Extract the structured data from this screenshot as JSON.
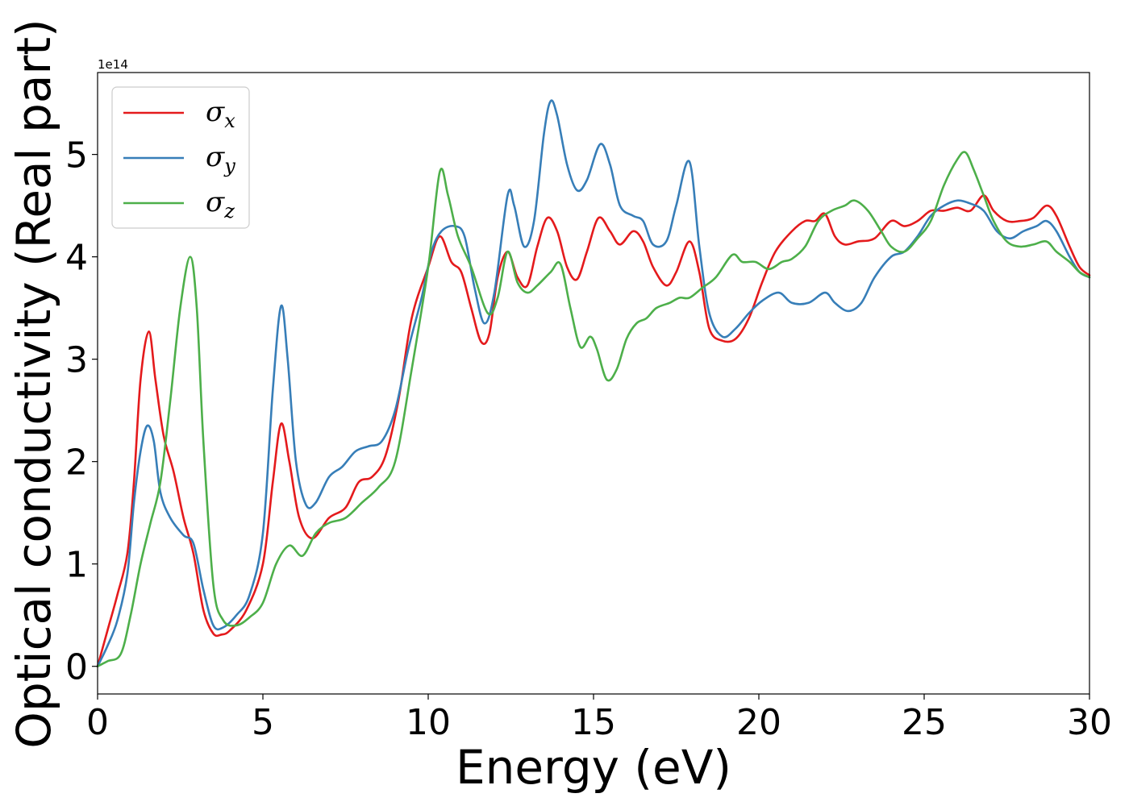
{
  "chart_data": {
    "type": "line",
    "xlabel": "Energy (eV)",
    "ylabel": "Optical conductivity (Real part)",
    "offset_text": "1e14",
    "xlim": [
      0,
      30
    ],
    "ylim": [
      -0.27,
      5.8
    ],
    "x_ticks": [
      0,
      5,
      10,
      15,
      20,
      25,
      30
    ],
    "x_tick_labels": [
      "0",
      "5",
      "10",
      "15",
      "20",
      "25",
      "30"
    ],
    "y_ticks": [
      0,
      1,
      2,
      3,
      4,
      5
    ],
    "y_tick_labels": [
      "0",
      "1",
      "2",
      "3",
      "4",
      "5"
    ],
    "grid": false,
    "legend_position": "upper-left",
    "series": [
      {
        "name": "σx",
        "symbol": "σ",
        "subscript": "x",
        "color": "#e41a1c",
        "points": [
          [
            0,
            0
          ],
          [
            0.3,
            0.35
          ],
          [
            0.6,
            0.7
          ],
          [
            0.9,
            1.1
          ],
          [
            1.1,
            1.8
          ],
          [
            1.3,
            2.8
          ],
          [
            1.55,
            3.27
          ],
          [
            1.75,
            2.8
          ],
          [
            2.0,
            2.25
          ],
          [
            2.3,
            1.9
          ],
          [
            2.6,
            1.45
          ],
          [
            2.9,
            1.1
          ],
          [
            3.2,
            0.55
          ],
          [
            3.5,
            0.32
          ],
          [
            3.75,
            0.31
          ],
          [
            4.0,
            0.35
          ],
          [
            4.5,
            0.55
          ],
          [
            5.0,
            1.0
          ],
          [
            5.3,
            1.8
          ],
          [
            5.55,
            2.37
          ],
          [
            5.8,
            2.0
          ],
          [
            6.1,
            1.45
          ],
          [
            6.5,
            1.25
          ],
          [
            7.0,
            1.45
          ],
          [
            7.5,
            1.55
          ],
          [
            7.9,
            1.8
          ],
          [
            8.3,
            1.85
          ],
          [
            8.7,
            2.05
          ],
          [
            9.1,
            2.6
          ],
          [
            9.5,
            3.4
          ],
          [
            10.0,
            3.9
          ],
          [
            10.35,
            4.2
          ],
          [
            10.7,
            3.95
          ],
          [
            11.0,
            3.85
          ],
          [
            11.3,
            3.5
          ],
          [
            11.6,
            3.17
          ],
          [
            11.85,
            3.25
          ],
          [
            12.1,
            3.8
          ],
          [
            12.4,
            4.05
          ],
          [
            12.7,
            3.8
          ],
          [
            13.0,
            3.72
          ],
          [
            13.3,
            4.1
          ],
          [
            13.6,
            4.38
          ],
          [
            13.9,
            4.25
          ],
          [
            14.2,
            3.9
          ],
          [
            14.5,
            3.78
          ],
          [
            14.8,
            4.05
          ],
          [
            15.15,
            4.38
          ],
          [
            15.5,
            4.25
          ],
          [
            15.8,
            4.12
          ],
          [
            16.2,
            4.25
          ],
          [
            16.5,
            4.15
          ],
          [
            16.8,
            3.9
          ],
          [
            17.2,
            3.72
          ],
          [
            17.5,
            3.85
          ],
          [
            17.9,
            4.15
          ],
          [
            18.2,
            3.85
          ],
          [
            18.5,
            3.3
          ],
          [
            18.9,
            3.18
          ],
          [
            19.3,
            3.2
          ],
          [
            19.7,
            3.4
          ],
          [
            20.1,
            3.75
          ],
          [
            20.5,
            4.05
          ],
          [
            21.0,
            4.25
          ],
          [
            21.4,
            4.35
          ],
          [
            21.7,
            4.35
          ],
          [
            22.0,
            4.42
          ],
          [
            22.3,
            4.2
          ],
          [
            22.6,
            4.12
          ],
          [
            23.0,
            4.15
          ],
          [
            23.5,
            4.18
          ],
          [
            24.0,
            4.35
          ],
          [
            24.4,
            4.3
          ],
          [
            24.8,
            4.35
          ],
          [
            25.2,
            4.45
          ],
          [
            25.6,
            4.45
          ],
          [
            26.0,
            4.48
          ],
          [
            26.4,
            4.45
          ],
          [
            26.8,
            4.6
          ],
          [
            27.1,
            4.45
          ],
          [
            27.5,
            4.35
          ],
          [
            27.9,
            4.35
          ],
          [
            28.3,
            4.38
          ],
          [
            28.7,
            4.5
          ],
          [
            29.0,
            4.4
          ],
          [
            29.4,
            4.1
          ],
          [
            29.7,
            3.9
          ],
          [
            30.0,
            3.82
          ]
        ]
      },
      {
        "name": "σy",
        "symbol": "σ",
        "subscript": "y",
        "color": "#377eb8",
        "points": [
          [
            0,
            0
          ],
          [
            0.3,
            0.2
          ],
          [
            0.6,
            0.45
          ],
          [
            0.9,
            0.9
          ],
          [
            1.1,
            1.6
          ],
          [
            1.3,
            2.1
          ],
          [
            1.5,
            2.35
          ],
          [
            1.7,
            2.2
          ],
          [
            1.9,
            1.7
          ],
          [
            2.2,
            1.45
          ],
          [
            2.6,
            1.28
          ],
          [
            2.9,
            1.2
          ],
          [
            3.2,
            0.75
          ],
          [
            3.5,
            0.4
          ],
          [
            3.8,
            0.38
          ],
          [
            4.2,
            0.5
          ],
          [
            4.6,
            0.7
          ],
          [
            5.0,
            1.3
          ],
          [
            5.3,
            2.7
          ],
          [
            5.55,
            3.52
          ],
          [
            5.75,
            3.0
          ],
          [
            6.0,
            2.0
          ],
          [
            6.3,
            1.58
          ],
          [
            6.6,
            1.6
          ],
          [
            7.0,
            1.85
          ],
          [
            7.4,
            1.95
          ],
          [
            7.8,
            2.1
          ],
          [
            8.2,
            2.15
          ],
          [
            8.6,
            2.2
          ],
          [
            9.0,
            2.5
          ],
          [
            9.4,
            3.1
          ],
          [
            9.8,
            3.6
          ],
          [
            10.1,
            4.05
          ],
          [
            10.4,
            4.25
          ],
          [
            10.8,
            4.3
          ],
          [
            11.1,
            4.2
          ],
          [
            11.4,
            3.7
          ],
          [
            11.7,
            3.35
          ],
          [
            12.0,
            3.65
          ],
          [
            12.4,
            4.6
          ],
          [
            12.6,
            4.5
          ],
          [
            12.9,
            4.1
          ],
          [
            13.2,
            4.35
          ],
          [
            13.5,
            5.2
          ],
          [
            13.7,
            5.52
          ],
          [
            13.9,
            5.38
          ],
          [
            14.2,
            4.9
          ],
          [
            14.5,
            4.65
          ],
          [
            14.8,
            4.75
          ],
          [
            15.2,
            5.1
          ],
          [
            15.5,
            4.9
          ],
          [
            15.8,
            4.5
          ],
          [
            16.2,
            4.4
          ],
          [
            16.5,
            4.35
          ],
          [
            16.8,
            4.12
          ],
          [
            17.2,
            4.15
          ],
          [
            17.5,
            4.5
          ],
          [
            17.9,
            4.93
          ],
          [
            18.2,
            4.1
          ],
          [
            18.5,
            3.45
          ],
          [
            18.9,
            3.22
          ],
          [
            19.3,
            3.3
          ],
          [
            19.7,
            3.45
          ],
          [
            20.1,
            3.57
          ],
          [
            20.6,
            3.65
          ],
          [
            21.0,
            3.55
          ],
          [
            21.5,
            3.55
          ],
          [
            22.0,
            3.65
          ],
          [
            22.3,
            3.55
          ],
          [
            22.7,
            3.47
          ],
          [
            23.1,
            3.55
          ],
          [
            23.5,
            3.8
          ],
          [
            24.0,
            4.0
          ],
          [
            24.4,
            4.05
          ],
          [
            24.8,
            4.2
          ],
          [
            25.2,
            4.4
          ],
          [
            25.6,
            4.5
          ],
          [
            26.0,
            4.55
          ],
          [
            26.4,
            4.52
          ],
          [
            26.8,
            4.45
          ],
          [
            27.2,
            4.25
          ],
          [
            27.6,
            4.18
          ],
          [
            28.0,
            4.25
          ],
          [
            28.4,
            4.3
          ],
          [
            28.7,
            4.35
          ],
          [
            29.0,
            4.25
          ],
          [
            29.4,
            4.0
          ],
          [
            29.7,
            3.85
          ],
          [
            30.0,
            3.8
          ]
        ]
      },
      {
        "name": "σz",
        "symbol": "σ",
        "subscript": "z",
        "color": "#4daf4a",
        "points": [
          [
            0,
            0
          ],
          [
            0.3,
            0.05
          ],
          [
            0.7,
            0.12
          ],
          [
            1.0,
            0.5
          ],
          [
            1.3,
            1.0
          ],
          [
            1.6,
            1.4
          ],
          [
            1.9,
            1.8
          ],
          [
            2.2,
            2.6
          ],
          [
            2.5,
            3.5
          ],
          [
            2.8,
            4.0
          ],
          [
            3.0,
            3.5
          ],
          [
            3.2,
            2.2
          ],
          [
            3.5,
            0.8
          ],
          [
            3.8,
            0.45
          ],
          [
            4.2,
            0.4
          ],
          [
            4.6,
            0.48
          ],
          [
            5.0,
            0.62
          ],
          [
            5.4,
            1.0
          ],
          [
            5.8,
            1.18
          ],
          [
            6.2,
            1.08
          ],
          [
            6.6,
            1.3
          ],
          [
            7.0,
            1.4
          ],
          [
            7.5,
            1.45
          ],
          [
            8.0,
            1.6
          ],
          [
            8.5,
            1.75
          ],
          [
            9.0,
            2.0
          ],
          [
            9.5,
            2.9
          ],
          [
            10.0,
            3.9
          ],
          [
            10.35,
            4.83
          ],
          [
            10.6,
            4.6
          ],
          [
            10.9,
            4.2
          ],
          [
            11.3,
            3.9
          ],
          [
            11.8,
            3.45
          ],
          [
            12.1,
            3.6
          ],
          [
            12.4,
            4.05
          ],
          [
            12.7,
            3.75
          ],
          [
            13.0,
            3.65
          ],
          [
            13.3,
            3.72
          ],
          [
            13.7,
            3.85
          ],
          [
            14.0,
            3.93
          ],
          [
            14.3,
            3.5
          ],
          [
            14.6,
            3.12
          ],
          [
            14.9,
            3.22
          ],
          [
            15.1,
            3.1
          ],
          [
            15.4,
            2.8
          ],
          [
            15.7,
            2.9
          ],
          [
            16.0,
            3.2
          ],
          [
            16.3,
            3.35
          ],
          [
            16.6,
            3.4
          ],
          [
            16.9,
            3.5
          ],
          [
            17.3,
            3.55
          ],
          [
            17.6,
            3.6
          ],
          [
            17.9,
            3.6
          ],
          [
            18.3,
            3.7
          ],
          [
            18.7,
            3.8
          ],
          [
            19.2,
            4.02
          ],
          [
            19.5,
            3.95
          ],
          [
            19.9,
            3.95
          ],
          [
            20.3,
            3.88
          ],
          [
            20.7,
            3.95
          ],
          [
            21.0,
            3.98
          ],
          [
            21.4,
            4.1
          ],
          [
            21.8,
            4.35
          ],
          [
            22.2,
            4.45
          ],
          [
            22.6,
            4.5
          ],
          [
            22.9,
            4.55
          ],
          [
            23.3,
            4.45
          ],
          [
            23.7,
            4.25
          ],
          [
            24.0,
            4.1
          ],
          [
            24.4,
            4.05
          ],
          [
            24.8,
            4.18
          ],
          [
            25.2,
            4.35
          ],
          [
            25.6,
            4.7
          ],
          [
            26.0,
            4.95
          ],
          [
            26.25,
            5.02
          ],
          [
            26.5,
            4.85
          ],
          [
            26.8,
            4.6
          ],
          [
            27.1,
            4.35
          ],
          [
            27.5,
            4.15
          ],
          [
            27.9,
            4.1
          ],
          [
            28.3,
            4.12
          ],
          [
            28.7,
            4.15
          ],
          [
            29.0,
            4.05
          ],
          [
            29.4,
            3.95
          ],
          [
            29.7,
            3.85
          ],
          [
            30.0,
            3.8
          ]
        ]
      }
    ]
  }
}
